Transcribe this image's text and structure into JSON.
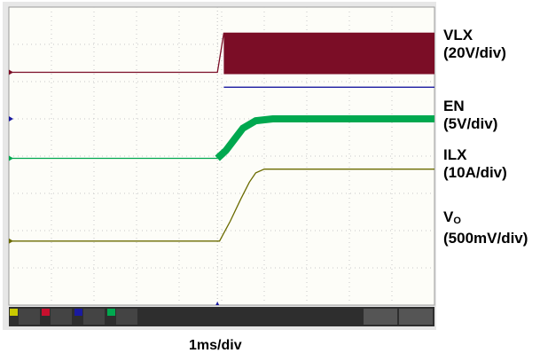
{
  "chart_data": {
    "type": "line",
    "title": "",
    "xlabel": "1ms/div",
    "ylabel": "",
    "x_divisions": 10,
    "y_divisions": 8,
    "xlim": [
      0,
      10
    ],
    "ylim": [
      0,
      8
    ],
    "trigger_time_div": 4.9,
    "grid": true,
    "series": [
      {
        "name": "VLX",
        "scale": "20V/div",
        "color": "#7b0d26",
        "marker_level_div": 6.25,
        "points": [
          [
            0,
            6.25
          ],
          [
            4.9,
            6.25
          ],
          [
            5.05,
            7.3
          ],
          [
            10,
            7.3
          ]
        ],
        "band_low_div": 6.2,
        "band_start_div": 5.05
      },
      {
        "name": "EN",
        "scale": "5V/div",
        "color": "#1a1aa0",
        "marker_level_div": 5.0,
        "points": [
          [
            5.05,
            5.85
          ],
          [
            10,
            5.85
          ]
        ]
      },
      {
        "name": "ILX",
        "scale": "10A/div",
        "color": "#00a84f",
        "marker_level_div": 3.94,
        "points": [
          [
            0,
            3.94
          ],
          [
            4.9,
            3.94
          ],
          [
            5.1,
            4.15
          ],
          [
            5.3,
            4.45
          ],
          [
            5.5,
            4.75
          ],
          [
            5.8,
            4.95
          ],
          [
            6.2,
            5.0
          ],
          [
            10,
            5.0
          ]
        ],
        "band_start_div": 4.95
      },
      {
        "name": "VO",
        "scale": "500mV/div",
        "color": "#6b6b00",
        "marker_level_div": 1.72,
        "points": [
          [
            0,
            1.72
          ],
          [
            4.95,
            1.72
          ],
          [
            5.2,
            2.25
          ],
          [
            5.45,
            2.85
          ],
          [
            5.65,
            3.3
          ],
          [
            5.8,
            3.55
          ],
          [
            6.0,
            3.65
          ],
          [
            10,
            3.65
          ]
        ]
      }
    ]
  },
  "labels": {
    "vlx_name": "VLX",
    "vlx_scale": "(20V/div)",
    "en_name": "EN",
    "en_scale": "(5V/div)",
    "ilx_name": "ILX",
    "ilx_scale": "(10A/div)",
    "vo_main": "V",
    "vo_sub": "O",
    "vo_scale": "(500mV/div)",
    "time_scale": "1ms/div"
  },
  "scope_ui": {
    "screen_bg": "#fdfdf8",
    "grid_color": "#c8c8c8",
    "status_bar_bg": "#2e2e2e",
    "channel_tab_colors": [
      "#c9c900",
      "#c8102e",
      "#1a1aa0",
      "#00a84f"
    ]
  }
}
